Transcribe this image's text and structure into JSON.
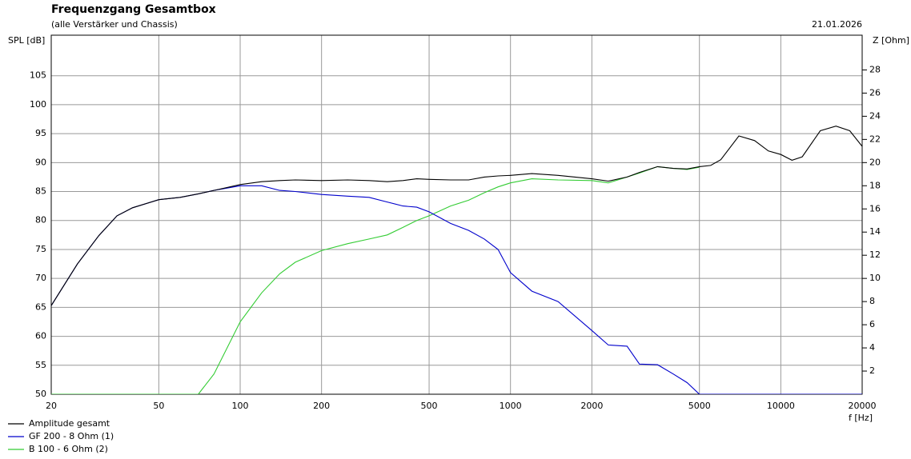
{
  "chart_data": {
    "type": "line",
    "title": "Frequenzgang Gesamtbox",
    "subtitle": "(alle Verstärker und Chassis)",
    "date": "21.01.2026",
    "y_label": "SPL [dB]",
    "y2_label": "Z [Ohm]",
    "x_label": "f [Hz]",
    "x_scale": "log",
    "grid": true,
    "legend": "bottom-left",
    "xlim": [
      20,
      20000
    ],
    "xticks": [
      20,
      50,
      100,
      200,
      500,
      1000,
      2000,
      5000,
      10000,
      20000
    ],
    "ylim": [
      50,
      112
    ],
    "yticks": [
      50,
      55,
      60,
      65,
      70,
      75,
      80,
      85,
      90,
      95,
      100,
      105
    ],
    "y2lim": [
      0,
      31
    ],
    "y2ticks": [
      2,
      4,
      6,
      8,
      10,
      12,
      14,
      16,
      18,
      20,
      22,
      24,
      26,
      28
    ],
    "x": [
      20,
      25,
      30,
      35,
      40,
      50,
      60,
      70,
      80,
      100,
      120,
      140,
      160,
      200,
      250,
      300,
      350,
      400,
      450,
      500,
      600,
      700,
      800,
      900,
      1000,
      1200,
      1500,
      2000,
      2300,
      2700,
      3000,
      3500,
      4000,
      4500,
      5000,
      5500,
      6000,
      7000,
      8000,
      9000,
      10000,
      11000,
      12000,
      14000,
      16000,
      18000,
      20000
    ],
    "series": [
      {
        "name": "Amplitude gesamt",
        "color": "#000000",
        "values": [
          65.3,
          72.5,
          77.4,
          80.8,
          82.2,
          83.6,
          84.0,
          84.6,
          85.2,
          86.2,
          86.7,
          86.9,
          87.0,
          86.9,
          87.0,
          86.9,
          86.7,
          86.9,
          87.2,
          87.1,
          87.0,
          87.0,
          87.5,
          87.7,
          87.8,
          88.1,
          87.8,
          87.2,
          86.8,
          87.5,
          88.3,
          89.3,
          89.0,
          88.9,
          89.3,
          89.5,
          90.5,
          94.6,
          93.8,
          92.0,
          91.4,
          90.4,
          91.0,
          95.5,
          96.3,
          95.5,
          92.8
        ]
      },
      {
        "name": "GF 200 - 8 Ohm (1)",
        "color": "#0000cc",
        "values": [
          65.3,
          72.5,
          77.4,
          80.8,
          82.2,
          83.6,
          84.0,
          84.6,
          85.2,
          86.0,
          86.0,
          85.2,
          85.0,
          84.5,
          84.2,
          84.0,
          83.2,
          82.5,
          82.3,
          81.5,
          79.5,
          78.3,
          76.8,
          75.0,
          71.0,
          67.8,
          66.0,
          61.0,
          58.5,
          58.3,
          55.2,
          55.1,
          53.5,
          52.0,
          50.0,
          50,
          50,
          50,
          50,
          50,
          50,
          50,
          50,
          50,
          50,
          50,
          50
        ]
      },
      {
        "name": "B 100 - 6 Ohm (2)",
        "color": "#33cc33",
        "values": [
          50,
          50,
          50,
          50,
          50,
          50,
          50,
          50,
          53.5,
          62.5,
          67.5,
          70.8,
          72.8,
          74.8,
          76.0,
          76.8,
          77.5,
          78.8,
          80.0,
          80.8,
          82.5,
          83.5,
          84.8,
          85.8,
          86.5,
          87.2,
          87.0,
          86.9,
          86.5,
          87.5,
          88.2,
          89.3,
          89.0,
          88.8,
          89.2,
          null,
          null,
          null,
          null,
          null,
          null,
          null,
          null,
          null,
          null,
          null,
          null
        ]
      }
    ]
  }
}
